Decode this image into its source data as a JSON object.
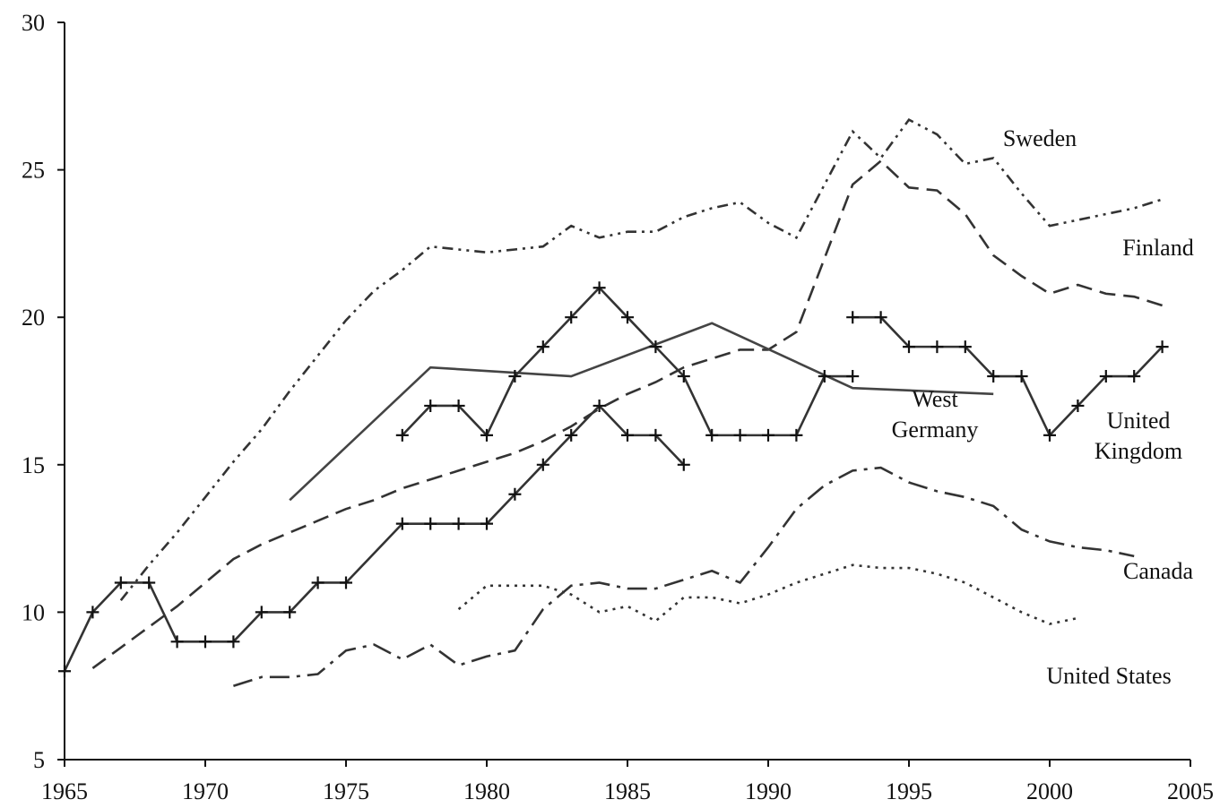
{
  "chart_data": {
    "type": "line",
    "xlim": [
      1965,
      2005
    ],
    "xticks": [
      1965,
      1970,
      1975,
      1980,
      1985,
      1990,
      1995,
      2000,
      2005
    ],
    "ylim": [
      5,
      30
    ],
    "yticks": [
      5,
      10,
      15,
      20,
      25,
      30
    ],
    "series": [
      {
        "name": "Sweden",
        "color": "#333333",
        "dash": "12 6 3 6 3 6",
        "x": [
          1967,
          1968,
          1969,
          1970,
          1971,
          1972,
          1973,
          1974,
          1975,
          1976,
          1977,
          1978,
          1979,
          1980,
          1981,
          1982,
          1983,
          1984,
          1985,
          1986,
          1987,
          1988,
          1989,
          1990,
          1991,
          1992,
          1993,
          1994,
          1995,
          1996,
          1997,
          1998,
          1999,
          2000,
          2001,
          2002,
          2003,
          2004
        ],
        "values": [
          10.4,
          11.6,
          12.7,
          13.9,
          15.1,
          16.2,
          17.5,
          18.7,
          19.9,
          20.9,
          21.6,
          22.4,
          22.3,
          22.2,
          22.3,
          22.4,
          23.1,
          22.7,
          22.9,
          22.9,
          23.4,
          23.7,
          23.9,
          23.2,
          22.7,
          24.5,
          26.3,
          25.4,
          26.7,
          26.2,
          25.2,
          25.4,
          24.2,
          23.1,
          23.3,
          23.5,
          23.7,
          24.0
        ]
      },
      {
        "name": "Finland",
        "color": "#333333",
        "dash": "18 9",
        "x": [
          1966,
          1967,
          1968,
          1969,
          1970,
          1971,
          1972,
          1973,
          1974,
          1975,
          1976,
          1977,
          1978,
          1979,
          1980,
          1981,
          1982,
          1983,
          1984,
          1985,
          1986,
          1987,
          1988,
          1989,
          1990,
          1991,
          1992,
          1993,
          1994,
          1995,
          1996,
          1997,
          1998,
          1999,
          2000,
          2001,
          2002,
          2003,
          2004
        ],
        "values": [
          8.1,
          8.8,
          9.5,
          10.2,
          11.0,
          11.8,
          12.3,
          12.7,
          13.1,
          13.5,
          13.8,
          14.2,
          14.5,
          14.8,
          15.1,
          15.4,
          15.8,
          16.3,
          16.9,
          17.4,
          17.8,
          18.3,
          18.6,
          18.9,
          18.9,
          19.5,
          22.0,
          24.5,
          25.3,
          24.4,
          24.3,
          23.5,
          22.1,
          21.4,
          20.8,
          21.1,
          20.8,
          20.7,
          20.4
        ]
      },
      {
        "name": "West Germany",
        "color": "#444444",
        "x": [
          1973,
          1978,
          1983,
          1988,
          1993,
          1998
        ],
        "values": [
          13.8,
          18.3,
          18.0,
          19.8,
          17.6,
          17.4
        ]
      },
      {
        "color": "#333333",
        "marker": "plus",
        "x": [
          1965,
          1966,
          1967,
          1968,
          1969,
          1970,
          1971,
          1972,
          1973,
          1974,
          1975,
          1977,
          1978,
          1979,
          1980,
          1981,
          1982,
          1983,
          1984,
          1985,
          1986,
          1987
        ],
        "values": [
          8,
          10,
          11,
          11,
          9,
          9,
          9,
          10,
          10,
          11,
          11,
          13,
          13,
          13,
          13,
          14,
          15,
          16,
          17,
          16,
          16,
          15
        ]
      },
      {
        "color": "#333333",
        "marker": "plus",
        "x": [
          1977,
          1978,
          1979,
          1980,
          1981,
          1982,
          1983,
          1984,
          1985,
          1986,
          1987,
          1988,
          1989,
          1990,
          1991,
          1992,
          1993
        ],
        "values": [
          16,
          17,
          17,
          16,
          18,
          19,
          20,
          21,
          20,
          19,
          18,
          16,
          16,
          16,
          16,
          18,
          18
        ]
      },
      {
        "name": "United Kingdom",
        "color": "#333333",
        "marker": "plus",
        "x": [
          1993,
          1994,
          1995,
          1996,
          1997,
          1998,
          1999,
          2000,
          2001,
          2002,
          2003,
          2004
        ],
        "values": [
          20,
          20,
          19,
          19,
          19,
          18,
          18,
          16,
          17,
          18,
          18,
          19
        ]
      },
      {
        "name": "Canada",
        "color": "#333333",
        "dash": "22 8 4 8",
        "x": [
          1971,
          1972,
          1973,
          1974,
          1975,
          1976,
          1977,
          1978,
          1979,
          1980,
          1981,
          1982,
          1983,
          1984,
          1985,
          1986,
          1987,
          1988,
          1989,
          1990,
          1991,
          1992,
          1993,
          1994,
          1995,
          1996,
          1997,
          1998,
          1999,
          2000,
          2001,
          2002,
          2003
        ],
        "values": [
          7.5,
          7.8,
          7.8,
          7.9,
          8.7,
          8.9,
          8.4,
          8.9,
          8.2,
          8.5,
          8.7,
          10.1,
          10.9,
          11.0,
          10.8,
          10.8,
          11.1,
          11.4,
          11.0,
          12.2,
          13.5,
          14.3,
          14.8,
          14.9,
          14.4,
          14.1,
          13.9,
          13.6,
          12.8,
          12.4,
          12.2,
          12.1,
          11.9
        ]
      },
      {
        "name": "United States",
        "color": "#333333",
        "dash": "3 6",
        "x": [
          1979,
          1980,
          1981,
          1982,
          1983,
          1984,
          1985,
          1986,
          1987,
          1988,
          1989,
          1990,
          1991,
          1992,
          1993,
          1994,
          1995,
          1996,
          1997,
          1998,
          1999,
          2000,
          2001
        ],
        "values": [
          10.1,
          10.9,
          10.9,
          10.9,
          10.6,
          10.0,
          10.2,
          9.7,
          10.5,
          10.5,
          10.3,
          10.6,
          11.0,
          11.3,
          11.6,
          11.5,
          11.5,
          11.3,
          11.0,
          10.5,
          10.0,
          9.6,
          9.8
        ]
      }
    ]
  }
}
